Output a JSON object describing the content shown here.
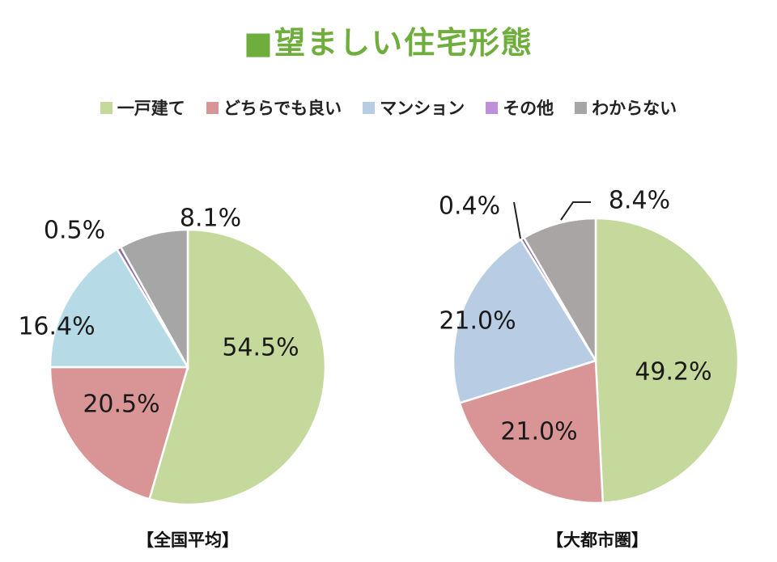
{
  "title": "■望ましい住宅形態",
  "legend": [
    {
      "label": "一戸建て",
      "color": "#c5d99c"
    },
    {
      "label": "どちらでも良い",
      "color": "#d99595"
    },
    {
      "label": "マンション",
      "color": "#b8cce4"
    },
    {
      "label": "その他",
      "color": "#c08fd9"
    },
    {
      "label": "わからない",
      "color": "#a6a6a6"
    }
  ],
  "chart_data": [
    {
      "type": "pie",
      "title": "【全国平均】",
      "categories": [
        "一戸建て",
        "どちらでも良い",
        "マンション",
        "その他",
        "わからない"
      ],
      "values": [
        54.5,
        20.5,
        16.4,
        0.5,
        8.1
      ],
      "labels": [
        "54.5%",
        "20.5%",
        "16.4%",
        "0.5%",
        "8.1%"
      ],
      "colors": [
        "#c5d99c",
        "#d99595",
        "#b6dbe6",
        "#8b6fa8",
        "#a6a6a6"
      ]
    },
    {
      "type": "pie",
      "title": "【大都市圏】",
      "categories": [
        "一戸建て",
        "どちらでも良い",
        "マンション",
        "その他",
        "わからない"
      ],
      "values": [
        49.2,
        21.0,
        21.0,
        0.4,
        8.4
      ],
      "labels": [
        "49.2%",
        "21.0%",
        "21.0%",
        "0.4%",
        "8.4%"
      ],
      "colors": [
        "#c5d99c",
        "#d99595",
        "#b8cce4",
        "#8b6fa8",
        "#a9a5a5"
      ]
    }
  ]
}
